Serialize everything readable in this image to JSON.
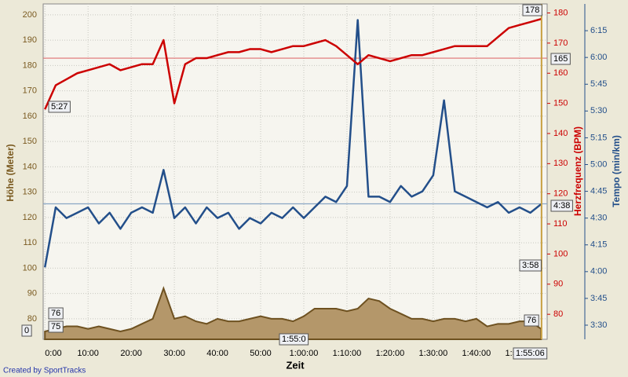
{
  "chart_data": {
    "type": "multi-axis-line",
    "x_label": "Zeit",
    "y_label": "Höhe (Meter)",
    "y2_label": "Herzfrequenz (BPM)",
    "y3_label": "Tempo (min/km)",
    "footer": "Created by SportTracks",
    "grid": true,
    "x": [
      0,
      2.5,
      5,
      7.5,
      10,
      12.5,
      15,
      17.5,
      20,
      22.5,
      25,
      27.5,
      30,
      32.5,
      35,
      37.5,
      40,
      42.5,
      45,
      47.5,
      50,
      52.5,
      55,
      57.5,
      60,
      62.5,
      65,
      67.5,
      70,
      72.5,
      75,
      77.5,
      80,
      82.5,
      85,
      87.5,
      90,
      92.5,
      95,
      97.5,
      100,
      102.5,
      105,
      107.5,
      110,
      112.5,
      115
    ],
    "xlim": [
      -0.4,
      116.4
    ],
    "xticks": [
      {
        "value": 0,
        "label": "0:00"
      },
      {
        "value": 10,
        "label": "10:00"
      },
      {
        "value": 20,
        "label": "20:00"
      },
      {
        "value": 30,
        "label": "30:00"
      },
      {
        "value": 40,
        "label": "40:00"
      },
      {
        "value": 50,
        "label": "50:00"
      },
      {
        "value": 60,
        "label": "1:00:00"
      },
      {
        "value": 70,
        "label": "1:10:00"
      },
      {
        "value": 80,
        "label": "1:20:00"
      },
      {
        "value": 90,
        "label": "1:30:00"
      },
      {
        "value": 100,
        "label": "1:40:00"
      },
      {
        "value": 110,
        "label": "1:50:00"
      }
    ],
    "ylim": [
      71.9,
      204.3
    ],
    "yticks": [
      80,
      90,
      100,
      110,
      120,
      130,
      140,
      150,
      160,
      170,
      180,
      190,
      200
    ],
    "y2lim": [
      71.7,
      183
    ],
    "y2ticks": [
      80,
      90,
      100,
      110,
      120,
      130,
      140,
      150,
      160,
      170,
      180
    ],
    "y3lim": [
      3.368,
      6.5
    ],
    "y3ticks": [
      {
        "value": 3.5,
        "label": "3:30"
      },
      {
        "value": 3.75,
        "label": "3:45"
      },
      {
        "value": 4,
        "label": "4:00"
      },
      {
        "value": 4.25,
        "label": "4:15"
      },
      {
        "value": 4.5,
        "label": "4:30"
      },
      {
        "value": 4.75,
        "label": "4:45"
      },
      {
        "value": 5,
        "label": "5:00"
      },
      {
        "value": 5.25,
        "label": "5:15"
      },
      {
        "value": 5.5,
        "label": "5:30"
      },
      {
        "value": 5.75,
        "label": "5:45"
      },
      {
        "value": 6,
        "label": "6:00"
      },
      {
        "value": 6.25,
        "label": "6:15"
      }
    ],
    "series": [
      {
        "name": "Höhe",
        "kind": "area",
        "color": "#b4976a",
        "values": [
          75,
          76,
          77,
          77,
          76,
          77,
          76,
          75,
          76,
          78,
          80,
          92,
          80,
          81,
          79,
          78,
          80,
          79,
          79,
          80,
          81,
          80,
          80,
          79,
          81,
          84,
          84,
          84,
          83,
          84,
          88,
          87,
          84,
          82,
          80,
          80,
          79,
          80,
          80,
          79,
          80,
          77,
          78,
          78,
          79,
          79,
          76
        ]
      },
      {
        "name": "Tempo",
        "kind": "line",
        "axis": "y3",
        "color": "#234f8a",
        "values": [
          4.04,
          4.6,
          4.5,
          4.55,
          4.6,
          4.45,
          4.55,
          4.4,
          4.55,
          4.6,
          4.55,
          4.95,
          4.5,
          4.6,
          4.45,
          4.6,
          4.5,
          4.55,
          4.4,
          4.5,
          4.45,
          4.55,
          4.5,
          4.6,
          4.5,
          4.6,
          4.7,
          4.65,
          4.8,
          6.35,
          4.7,
          4.7,
          4.65,
          4.8,
          4.7,
          4.75,
          4.9,
          5.6,
          4.75,
          4.7,
          4.65,
          4.6,
          4.65,
          4.55,
          4.6,
          4.55,
          4.63
        ]
      },
      {
        "name": "Herzfrequenz",
        "kind": "line",
        "axis": "y2",
        "color": "#cc0000",
        "values": [
          148,
          156,
          158,
          160,
          161,
          162,
          163,
          161,
          162,
          163,
          163,
          171,
          150,
          163,
          165,
          165,
          166,
          167,
          167,
          168,
          168,
          167,
          168,
          169,
          169,
          170,
          171,
          169,
          166,
          163,
          166,
          165,
          164,
          165,
          166,
          166,
          167,
          168,
          169,
          169,
          169,
          169,
          172,
          175,
          176,
          177,
          178
        ]
      }
    ],
    "reference_lines": [
      {
        "axis": "y2",
        "value": 165,
        "color": "#e07070"
      },
      {
        "axis": "y3",
        "value": 4.633,
        "color": "#8aa6c4"
      }
    ],
    "cursor_x": 115.1,
    "annotations": [
      "5:27",
      "178",
      "165",
      "4:38",
      "3:58",
      "76",
      "75",
      "0",
      "76",
      "1:55:0",
      "1:55:06"
    ]
  }
}
